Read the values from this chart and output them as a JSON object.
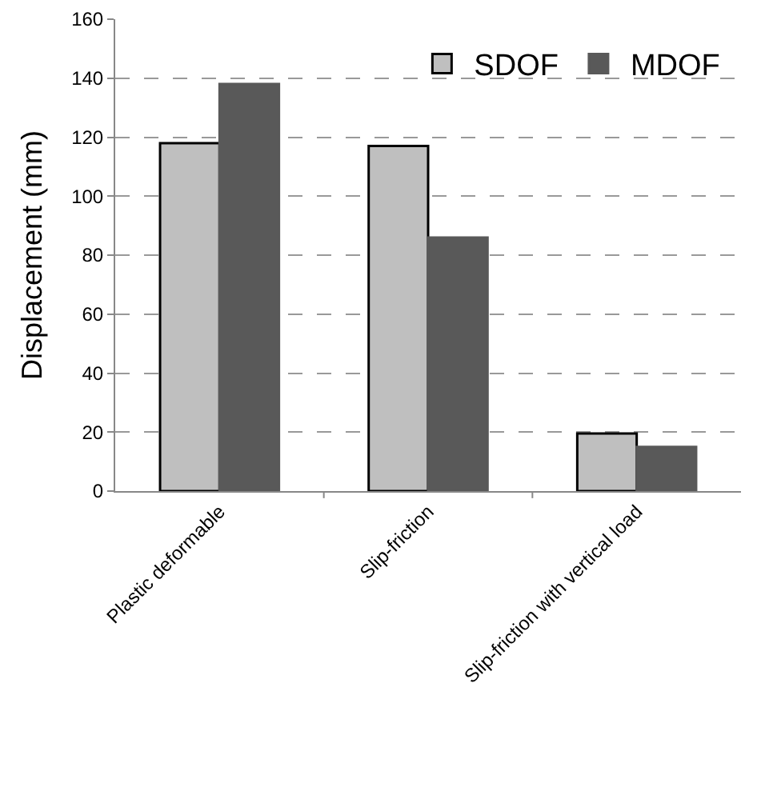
{
  "chart_data": {
    "type": "bar",
    "ylabel": "Displacement (mm)",
    "categories": [
      "Plastic deformable",
      "Slip-friction",
      "Slip-friction with vertical load"
    ],
    "series": [
      {
        "name": "SDOF",
        "color": "#bfbfbf",
        "values": [
          118,
          117,
          19.5
        ]
      },
      {
        "name": "MDOF",
        "color": "#595959",
        "values": [
          138,
          86,
          15
        ]
      }
    ],
    "ylim": [
      0,
      160
    ],
    "yticks": [
      0,
      20,
      40,
      60,
      80,
      100,
      120,
      140,
      160
    ],
    "grid": "y",
    "legend": "top right"
  }
}
